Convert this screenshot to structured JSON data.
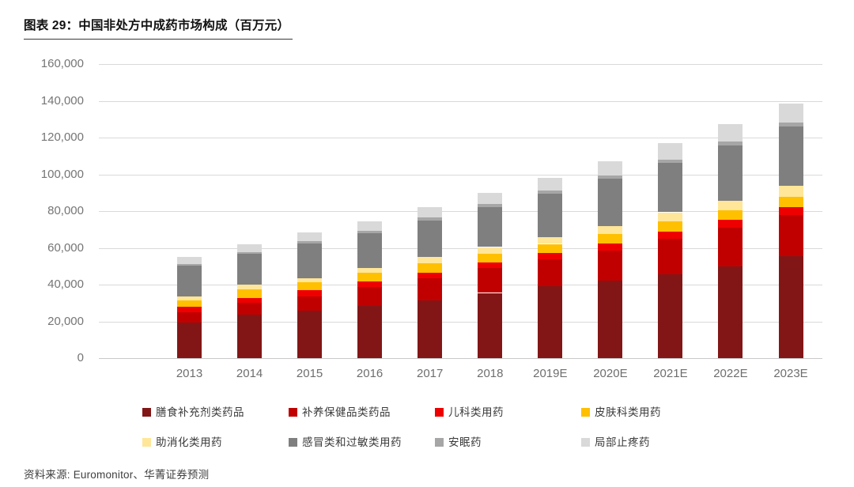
{
  "title": "图表 29：中国非处方中成药市场构成（百万元）",
  "source": "资料来源: Euromonitor、华菁证券预测",
  "chart_data": {
    "type": "bar",
    "stacked": true,
    "title": "图表 29：中国非处方中成药市场构成（百万元）",
    "unit": "百万元",
    "categories": [
      "2013",
      "2014",
      "2015",
      "2016",
      "2017",
      "2018",
      "2019E",
      "2020E",
      "2021E",
      "2022E",
      "2023E"
    ],
    "series": [
      {
        "name": "膳食补充剂类药品",
        "color": "#821616",
        "values": [
          19200,
          23500,
          25700,
          28500,
          31400,
          35500,
          39250,
          42150,
          45700,
          50000,
          55500
        ]
      },
      {
        "name": "补养保健品类药品",
        "color": "#C00000",
        "values": [
          5700,
          6450,
          7900,
          10300,
          12200,
          13500,
          14350,
          16350,
          19350,
          20800,
          22500
        ]
      },
      {
        "name": "儿科类用药",
        "color": "#EE0000",
        "values": [
          2900,
          2850,
          3300,
          2900,
          2900,
          2900,
          3550,
          3850,
          3850,
          4300,
          4300
        ]
      },
      {
        "name": "皮肤科类用药",
        "color": "#FFC000",
        "values": [
          3600,
          4600,
          4300,
          4750,
          5000,
          5000,
          5000,
          5000,
          5450,
          5300,
          5450
        ]
      },
      {
        "name": "助消化类用药",
        "color": "#FFE699",
        "values": [
          2150,
          2600,
          2400,
          2450,
          3600,
          3550,
          3550,
          4300,
          5000,
          5150,
          6000
        ]
      },
      {
        "name": "感冒类和过敏类用药",
        "color": "#7F7F7F",
        "values": [
          16700,
          16600,
          18800,
          18900,
          19950,
          21800,
          23900,
          26100,
          26750,
          30000,
          32200
        ]
      },
      {
        "name": "安眠药",
        "color": "#A6A6A6",
        "values": [
          1000,
          1100,
          1200,
          1300,
          1400,
          1500,
          1700,
          1800,
          2000,
          2200,
          2400
        ]
      },
      {
        "name": "局部止疼药",
        "color": "#D9D9D9",
        "values": [
          3750,
          4200,
          4700,
          5500,
          5900,
          6350,
          7000,
          7450,
          9000,
          9600,
          10250
        ]
      }
    ],
    "ylim": [
      0,
      160000
    ],
    "ytick_step": 20000,
    "ytick_labels": [
      "0",
      "20,000",
      "40,000",
      "60,000",
      "80,000",
      "100,000",
      "120,000",
      "140,000",
      "160,000"
    ],
    "grid": true,
    "legend_position": "bottom"
  }
}
